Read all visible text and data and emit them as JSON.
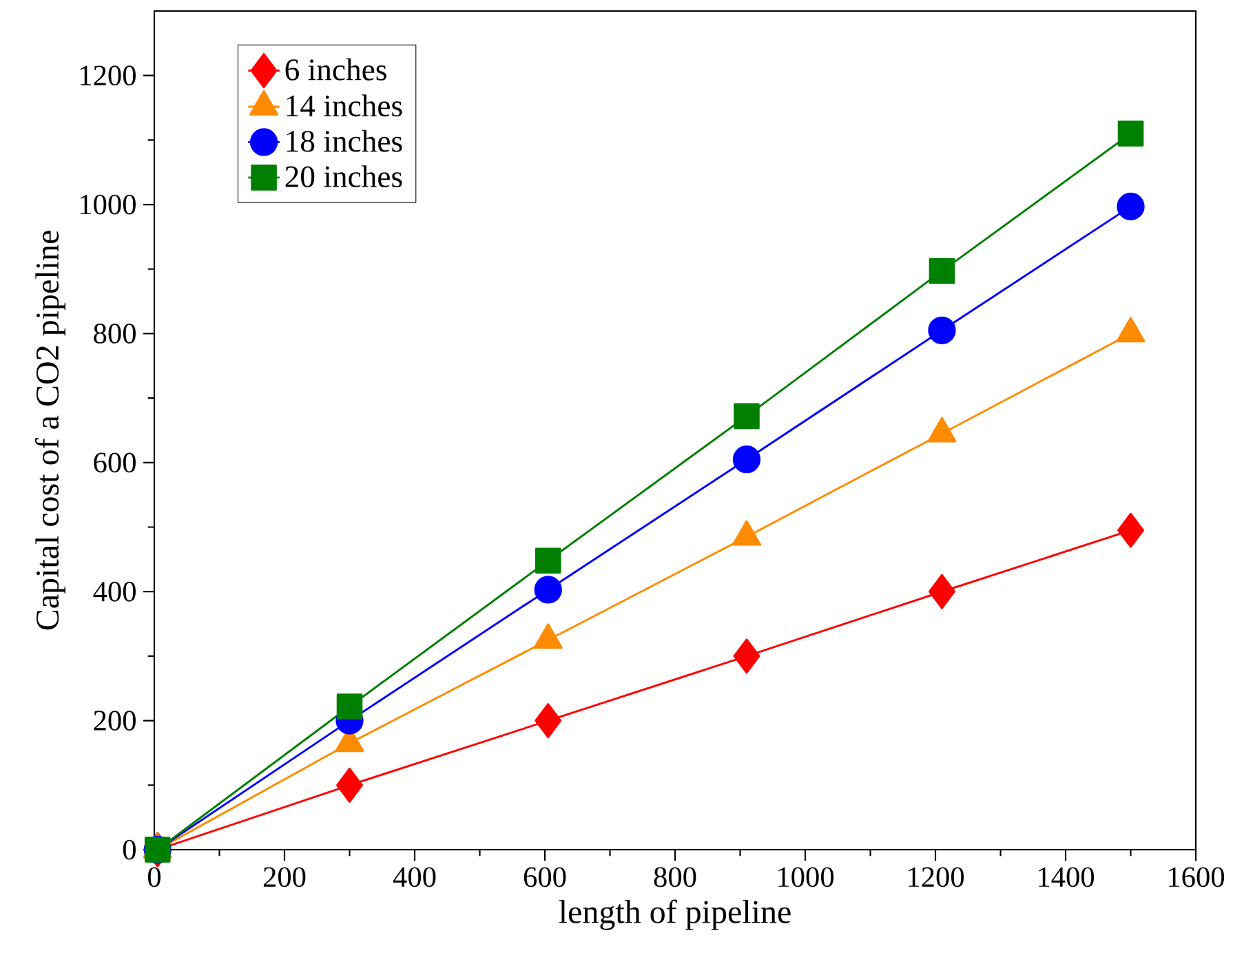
{
  "chart_data": {
    "type": "line",
    "xlabel": "length of pipeline",
    "ylabel": "Capital cost of a CO2 pipeline",
    "x": [
      5,
      300,
      605,
      910,
      1210,
      1500
    ],
    "series": [
      {
        "name": "6 inches",
        "color": "#ff0000",
        "marker": "diamond",
        "values": [
          0,
          100,
          200,
          300,
          400,
          495
        ]
      },
      {
        "name": "14 inches",
        "color": "#ff8c00",
        "marker": "triangle",
        "values": [
          0,
          165,
          325,
          485,
          645,
          800
        ]
      },
      {
        "name": "18 inches",
        "color": "#0000ff",
        "marker": "circle",
        "values": [
          0,
          200,
          403,
          605,
          805,
          997
        ]
      },
      {
        "name": "20 inches",
        "color": "#008000",
        "marker": "square",
        "values": [
          0,
          222,
          448,
          672,
          897,
          1110
        ]
      }
    ],
    "xlim": [
      0,
      1600
    ],
    "ylim": [
      0,
      1300
    ],
    "xticks": [
      0,
      200,
      400,
      600,
      800,
      1000,
      1200,
      1400,
      1600
    ],
    "yticks": [
      0,
      200,
      400,
      600,
      800,
      1000,
      1200
    ],
    "grid": false,
    "legend": "top left",
    "line_style": "solid"
  }
}
